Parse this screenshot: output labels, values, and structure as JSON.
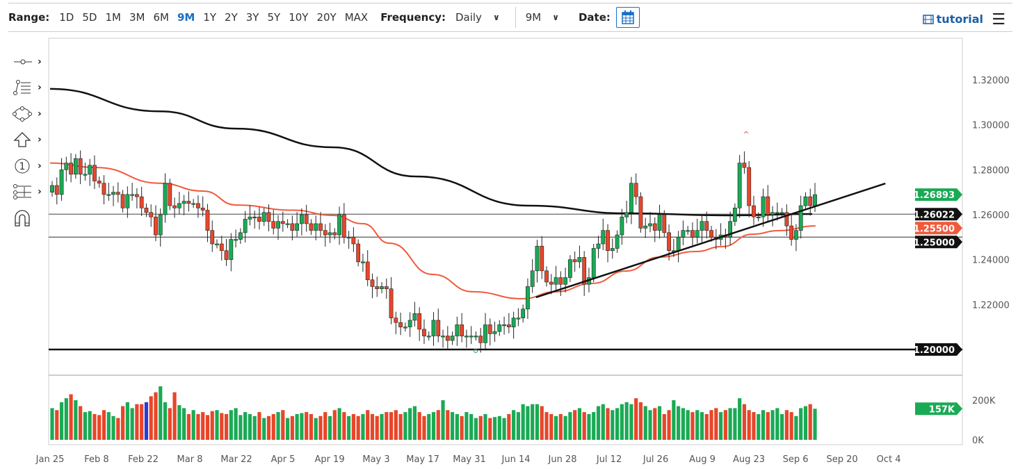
{
  "toolbar": {
    "range_label": "Range:",
    "ranges": [
      "1D",
      "5D",
      "1M",
      "3M",
      "6M",
      "9M",
      "1Y",
      "2Y",
      "3Y",
      "5Y",
      "10Y",
      "20Y",
      "MAX"
    ],
    "active_range": "9M",
    "frequency_label": "Frequency:",
    "frequency": "Daily",
    "period": "9M",
    "date_label": "Date:",
    "tutorial": "tutorial",
    "icons": {
      "calendar": "calendar-icon",
      "tutorial": "film-icon",
      "menu": "hamburger-icon"
    }
  },
  "drawing_tools": [
    "line-tool-icon",
    "fibonacci-tool-icon",
    "shape-tool-icon",
    "arrow-tool-icon",
    "annotation-tool-icon",
    "measure-tool-icon",
    "magnet-icon"
  ],
  "colors": {
    "up": "#1aaa55",
    "down": "#e8462a",
    "ma_short": "#f05a3c",
    "ma_long": "#111111",
    "accent": "#1a6fc4",
    "volume_highlight": "#2a3bd6"
  },
  "chart_data": {
    "type": "candlestick",
    "ylim": [
      1.19,
      1.33
    ],
    "y_ticks": [
      "1.32000",
      "1.30000",
      "1.28000",
      "1.26000",
      "1.24000",
      "1.22000"
    ],
    "y_tick_values": [
      1.32,
      1.3,
      1.28,
      1.26,
      1.24,
      1.22
    ],
    "x_ticks": [
      "Jan 25",
      "Feb 8",
      "Feb 22",
      "Mar 8",
      "Mar 22",
      "Apr 5",
      "Apr 19",
      "May 3",
      "May 17",
      "May 31",
      "Jun 14",
      "Jun 28",
      "Jul 12",
      "Jul 26",
      "Aug 9",
      "Aug 23",
      "Sep 6",
      "Sep 20",
      "Oct 4"
    ],
    "x_tick_dates": [
      "2021-01-25",
      "2021-02-08",
      "2021-02-22",
      "2021-03-08",
      "2021-03-22",
      "2021-04-05",
      "2021-04-19",
      "2021-05-03",
      "2021-05-17",
      "2021-05-31",
      "2021-06-14",
      "2021-06-28",
      "2021-07-12",
      "2021-07-26",
      "2021-08-09",
      "2021-08-23",
      "2021-09-06",
      "2021-09-20",
      "2021-10-04"
    ],
    "x_range": [
      "2021-01-25",
      "2021-10-13"
    ],
    "closes": [
      1.273,
      1.269,
      1.28,
      1.283,
      1.278,
      1.285,
      1.278,
      1.278,
      1.282,
      1.275,
      1.274,
      1.269,
      1.269,
      1.27,
      1.269,
      1.263,
      1.269,
      1.269,
      1.268,
      1.263,
      1.261,
      1.259,
      1.251,
      1.26,
      1.274,
      1.264,
      1.263,
      1.265,
      1.266,
      1.265,
      1.265,
      1.263,
      1.262,
      1.253,
      1.247,
      1.247,
      1.244,
      1.24,
      1.249,
      1.249,
      1.252,
      1.258,
      1.259,
      1.259,
      1.257,
      1.261,
      1.257,
      1.254,
      1.257,
      1.256,
      1.256,
      1.253,
      1.256,
      1.26,
      1.256,
      1.253,
      1.256,
      1.253,
      1.251,
      1.252,
      1.251,
      1.26,
      1.25,
      1.25,
      1.247,
      1.239,
      1.239,
      1.231,
      1.228,
      1.227,
      1.228,
      1.227,
      1.214,
      1.212,
      1.21,
      1.21,
      1.213,
      1.216,
      1.209,
      1.206,
      1.206,
      1.213,
      1.206,
      1.206,
      1.204,
      1.206,
      1.211,
      1.206,
      1.206,
      1.206,
      1.206,
      1.203,
      1.211,
      1.207,
      1.208,
      1.211,
      1.211,
      1.21,
      1.214,
      1.214,
      1.218,
      1.228,
      1.235,
      1.246,
      1.235,
      1.23,
      1.229,
      1.232,
      1.229,
      1.232,
      1.24,
      1.239,
      1.241,
      1.229,
      1.232,
      1.245,
      1.247,
      1.253,
      1.244,
      1.245,
      1.251,
      1.259,
      1.261,
      1.274,
      1.268,
      1.254,
      1.255,
      1.256,
      1.253,
      1.26,
      1.252,
      1.244,
      1.244,
      1.25,
      1.253,
      1.253,
      1.25,
      1.253,
      1.257,
      1.253,
      1.25,
      1.249,
      1.251,
      1.25,
      1.257,
      1.263,
      1.283,
      1.281,
      1.264,
      1.259,
      1.259,
      1.268,
      1.26,
      1.261,
      1.261,
      1.261,
      1.255,
      1.249,
      1.253,
      1.264,
      1.268,
      1.264,
      1.26893
    ],
    "volume_ylim": [
      0,
      200
    ],
    "volume_ticks": [
      "200K",
      "0K"
    ],
    "volume_tick_values": [
      200,
      0
    ],
    "volumes_k": [
      160,
      150,
      190,
      210,
      230,
      200,
      170,
      140,
      145,
      130,
      125,
      150,
      140,
      120,
      110,
      170,
      190,
      160,
      180,
      180,
      190,
      220,
      240,
      270,
      190,
      160,
      240,
      175,
      160,
      130,
      150,
      130,
      140,
      125,
      145,
      150,
      135,
      130,
      150,
      160,
      125,
      140,
      130,
      120,
      140,
      110,
      120,
      130,
      140,
      150,
      110,
      120,
      130,
      135,
      140,
      130,
      110,
      120,
      140,
      120,
      150,
      160,
      140,
      120,
      130,
      120,
      130,
      150,
      130,
      120,
      130,
      140,
      140,
      150,
      130,
      140,
      160,
      170,
      140,
      120,
      130,
      140,
      150,
      200,
      150,
      140,
      130,
      120,
      140,
      130,
      110,
      120,
      130,
      110,
      115,
      120,
      110,
      130,
      150,
      140,
      180,
      170,
      180,
      180,
      170,
      140,
      130,
      120,
      130,
      120,
      140,
      150,
      160,
      140,
      130,
      140,
      170,
      180,
      160,
      150,
      160,
      180,
      190,
      180,
      210,
      190,
      170,
      150,
      160,
      170,
      130,
      150,
      200,
      170,
      160,
      150,
      140,
      150,
      140,
      130,
      150,
      160,
      140,
      150,
      160,
      160,
      210,
      180,
      150,
      140,
      130,
      150,
      140,
      150,
      160,
      130,
      150,
      140,
      120,
      160,
      170,
      180,
      157
    ],
    "volume_highlight_index": 20,
    "series": [
      {
        "kind": "ma_long",
        "points": [
          [
            "2021-01-25",
            1.316
          ],
          [
            "2021-02-27",
            1.306
          ],
          [
            "2021-03-22",
            1.2983
          ],
          [
            "2021-04-20",
            1.29
          ],
          [
            "2021-05-15",
            1.277
          ],
          [
            "2021-06-18",
            1.264
          ],
          [
            "2021-07-17",
            1.2606
          ],
          [
            "2021-08-17",
            1.2597
          ],
          [
            "2021-09-11",
            1.2603
          ]
        ]
      },
      {
        "kind": "ma_short",
        "points": [
          [
            "2021-01-25",
            1.283
          ],
          [
            "2021-02-08",
            1.281
          ],
          [
            "2021-02-27",
            1.274
          ],
          [
            "2021-03-12",
            1.2705
          ],
          [
            "2021-03-22",
            1.2643
          ],
          [
            "2021-04-08",
            1.262
          ],
          [
            "2021-04-20",
            1.2597
          ],
          [
            "2021-04-29",
            1.256
          ],
          [
            "2021-05-07",
            1.2473
          ],
          [
            "2021-05-20",
            1.2334
          ],
          [
            "2021-06-01",
            1.2257
          ],
          [
            "2021-06-16",
            1.2226
          ],
          [
            "2021-06-26",
            1.2257
          ],
          [
            "2021-07-07",
            1.2294
          ],
          [
            "2021-07-17",
            1.2349
          ],
          [
            "2021-07-27",
            1.2411
          ],
          [
            "2021-08-07",
            1.2436
          ],
          [
            "2021-08-15",
            1.2458
          ],
          [
            "2021-08-24",
            1.2513
          ],
          [
            "2021-09-01",
            1.2529
          ],
          [
            "2021-09-12",
            1.255
          ]
        ]
      }
    ],
    "trendline": [
      [
        "2021-06-20",
        1.2232
      ],
      [
        "2021-10-03",
        1.2739
      ]
    ],
    "horizontal_lines": [
      1.26022,
      1.25,
      1.2
    ],
    "price_tags": [
      {
        "label": "1.26893",
        "value": 1.26893,
        "color": "#1aaa55"
      },
      {
        "label": "1.26022",
        "value": 1.26022,
        "color": "#111111"
      },
      {
        "label": "1.25000",
        "value": 1.25,
        "color": "#111111"
      },
      {
        "label": "1.25500",
        "value": 1.255,
        "color": "#f05a3c"
      },
      {
        "label": "1.20000",
        "value": 1.2,
        "color": "#111111"
      }
    ],
    "volume_tag": {
      "label": "157K",
      "value": 157,
      "color": "#1aaa55"
    }
  }
}
